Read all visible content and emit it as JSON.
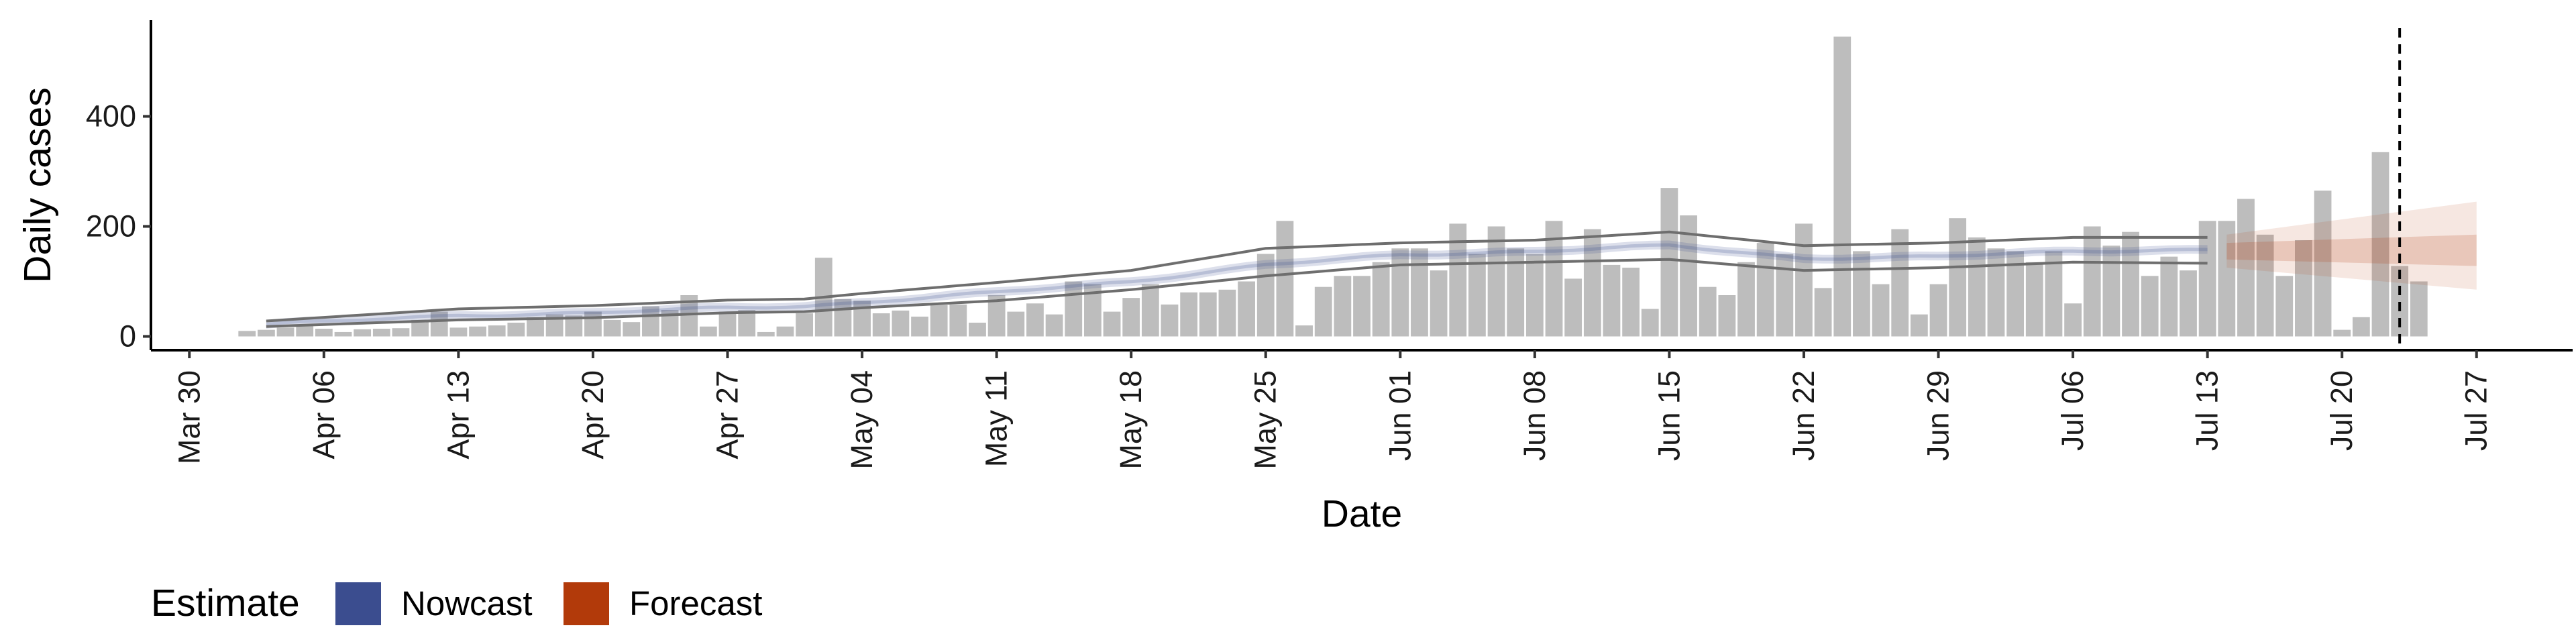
{
  "chart_data": {
    "type": "bar",
    "xlabel": "Date",
    "ylabel": "Daily cases",
    "y_ticks": [
      0,
      200,
      400
    ],
    "ylim": [
      -25,
      575
    ],
    "x_range": [
      "2020-03-28",
      "2020-08-01"
    ],
    "x_ticks": [
      {
        "date": "2020-03-30",
        "label": "Mar 30"
      },
      {
        "date": "2020-04-06",
        "label": "Apr 06"
      },
      {
        "date": "2020-04-13",
        "label": "Apr 13"
      },
      {
        "date": "2020-04-20",
        "label": "Apr 20"
      },
      {
        "date": "2020-04-27",
        "label": "Apr 27"
      },
      {
        "date": "2020-05-04",
        "label": "May 04"
      },
      {
        "date": "2020-05-11",
        "label": "May 11"
      },
      {
        "date": "2020-05-18",
        "label": "May 18"
      },
      {
        "date": "2020-05-25",
        "label": "May 25"
      },
      {
        "date": "2020-06-01",
        "label": "Jun 01"
      },
      {
        "date": "2020-06-08",
        "label": "Jun 08"
      },
      {
        "date": "2020-06-15",
        "label": "Jun 15"
      },
      {
        "date": "2020-06-22",
        "label": "Jun 22"
      },
      {
        "date": "2020-06-29",
        "label": "Jun 29"
      },
      {
        "date": "2020-07-06",
        "label": "Jul 06"
      },
      {
        "date": "2020-07-13",
        "label": "Jul 13"
      },
      {
        "date": "2020-07-20",
        "label": "Jul 20"
      },
      {
        "date": "2020-07-27",
        "label": "Jul 27"
      }
    ],
    "bars": {
      "start_date": "2020-04-02",
      "values": [
        10,
        12,
        16,
        20,
        14,
        8,
        13,
        14,
        15,
        30,
        45,
        16,
        18,
        20,
        25,
        35,
        40,
        38,
        45,
        30,
        26,
        55,
        48,
        75,
        18,
        45,
        48,
        8,
        18,
        42,
        143,
        68,
        65,
        42,
        47,
        36,
        57,
        58,
        25,
        75,
        45,
        60,
        40,
        100,
        95,
        45,
        70,
        95,
        58,
        80,
        80,
        85,
        100,
        150,
        210,
        20,
        90,
        110,
        110,
        135,
        160,
        160,
        120,
        205,
        150,
        200,
        160,
        150,
        210,
        105,
        195,
        130,
        125,
        50,
        270,
        220,
        90,
        75,
        135,
        170,
        150,
        205,
        88,
        545,
        155,
        95,
        195,
        40,
        95,
        215,
        180,
        160,
        155,
        135,
        155,
        60,
        200,
        165,
        190,
        110,
        145,
        120,
        210,
        210,
        250,
        185,
        110,
        175,
        265,
        12,
        35,
        335,
        128,
        100
      ]
    },
    "nowcast": {
      "name": "Nowcast",
      "color": "#3b4d8f",
      "start_date": "2020-04-03",
      "end_date": "2020-07-13",
      "knots": [
        {
          "date": "2020-04-03",
          "median": 22,
          "lower": 18,
          "upper": 28
        },
        {
          "date": "2020-04-13",
          "median": 38,
          "lower": 30,
          "upper": 50
        },
        {
          "date": "2020-04-20",
          "median": 43,
          "lower": 34,
          "upper": 56
        },
        {
          "date": "2020-04-27",
          "median": 52,
          "lower": 43,
          "upper": 66
        },
        {
          "date": "2020-05-01",
          "median": 55,
          "lower": 45,
          "upper": 68
        },
        {
          "date": "2020-05-04",
          "median": 62,
          "lower": 52,
          "upper": 78
        },
        {
          "date": "2020-05-11",
          "median": 80,
          "lower": 65,
          "upper": 98
        },
        {
          "date": "2020-05-18",
          "median": 100,
          "lower": 85,
          "upper": 120
        },
        {
          "date": "2020-05-25",
          "median": 130,
          "lower": 110,
          "upper": 160
        },
        {
          "date": "2020-06-01",
          "median": 148,
          "lower": 130,
          "upper": 170
        },
        {
          "date": "2020-06-08",
          "median": 155,
          "lower": 135,
          "upper": 175
        },
        {
          "date": "2020-06-15",
          "median": 165,
          "lower": 140,
          "upper": 190
        },
        {
          "date": "2020-06-22",
          "median": 142,
          "lower": 120,
          "upper": 165
        },
        {
          "date": "2020-06-29",
          "median": 145,
          "lower": 125,
          "upper": 170
        },
        {
          "date": "2020-07-06",
          "median": 155,
          "lower": 135,
          "upper": 180
        },
        {
          "date": "2020-07-13",
          "median": 158,
          "lower": 133,
          "upper": 180
        }
      ]
    },
    "forecast": {
      "name": "Forecast",
      "color": "#b23a0a",
      "start_date": "2020-07-14",
      "end_date": "2020-07-27",
      "median": 155,
      "lower50_start": 140,
      "upper50_start": 170,
      "lower50_end": 128,
      "upper50_end": 185,
      "lower90_start": 125,
      "upper90_start": 185,
      "lower90_end": 85,
      "upper90_end": 245
    },
    "vline_date": "2020-07-23",
    "legend": {
      "title": "Estimate",
      "position": "bottom-left",
      "items": [
        "Nowcast",
        "Forecast"
      ]
    },
    "colors": {
      "bar": "#bdbdbd",
      "outline": "#6e6e6e",
      "axis": "#000000"
    },
    "grid": false
  }
}
